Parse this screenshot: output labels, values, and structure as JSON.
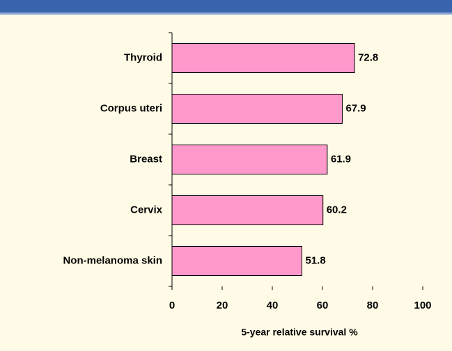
{
  "chart_data": {
    "type": "barh",
    "categories": [
      "Thyroid",
      "Corpus uteri",
      "Breast",
      "Cervix",
      "Non-melanoma skin"
    ],
    "values": [
      72.8,
      67.9,
      61.9,
      60.2,
      51.8
    ],
    "color": "#ff99cc",
    "xlabel": "5-year relative survival %",
    "xlim": [
      0,
      100
    ],
    "xticks": [
      0,
      20,
      40,
      60,
      80,
      100
    ]
  }
}
